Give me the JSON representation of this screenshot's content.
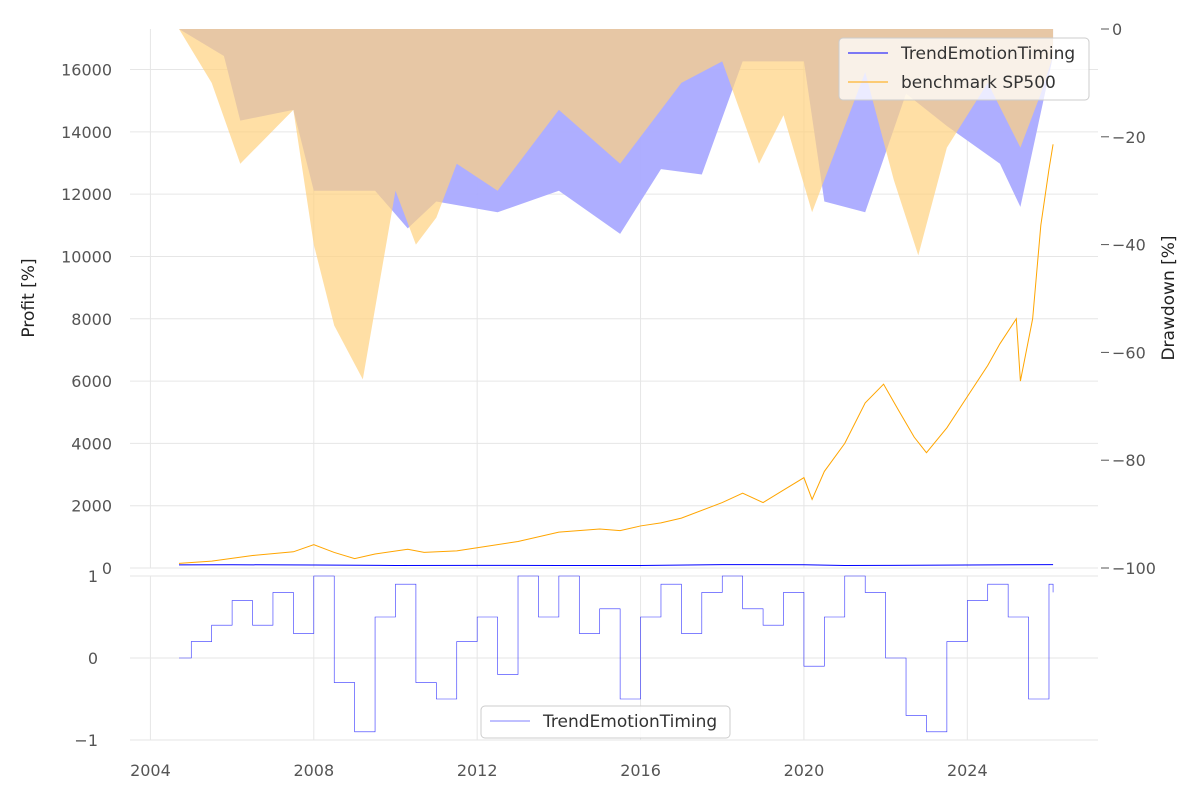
{
  "chart_data": [
    {
      "type": "line",
      "panel": "top",
      "title": "",
      "xlabel": "",
      "ylabel": "Profit [%]",
      "y2label": "Drawdown [%]",
      "xlim": [
        2003.5,
        2027.2
      ],
      "ylim": [
        0,
        17300
      ],
      "y2lim": [
        -100,
        0
      ],
      "x_ticks": [
        2004,
        2008,
        2012,
        2016,
        2020,
        2024
      ],
      "y_ticks": [
        0,
        2000,
        4000,
        6000,
        8000,
        10000,
        12000,
        14000,
        16000
      ],
      "y2_ticks": [
        0,
        -20,
        -40,
        -60,
        -80,
        -100
      ],
      "grid": true,
      "legend": {
        "position": "top-right",
        "entries": [
          "TrendEmotionTiming",
          "benchmark SP500"
        ]
      },
      "series": [
        {
          "name": "TrendEmotionTiming",
          "color": "#0000ff",
          "axis": "left",
          "x": [
            2004.7,
            2006,
            2008,
            2010,
            2012,
            2014,
            2016,
            2018,
            2020,
            2021,
            2022,
            2024,
            2026.1
          ],
          "y": [
            100,
            105,
            95,
            80,
            85,
            82,
            80,
            110,
            105,
            80,
            85,
            95,
            110
          ]
        },
        {
          "name": "benchmark SP500",
          "color": "#ffa500",
          "axis": "left",
          "x": [
            2004.7,
            2005.5,
            2006.5,
            2007.5,
            2008.0,
            2008.5,
            2009.0,
            2009.5,
            2010.3,
            2010.7,
            2011.5,
            2012.0,
            2013.0,
            2014.0,
            2015.0,
            2015.5,
            2016.0,
            2016.5,
            2017.0,
            2018.0,
            2018.5,
            2019.0,
            2019.5,
            2020.0,
            2020.2,
            2020.5,
            2021.0,
            2021.5,
            2021.95,
            2022.3,
            2022.7,
            2023.0,
            2023.5,
            2024.0,
            2024.5,
            2024.8,
            2025.2,
            2025.3,
            2025.6,
            2025.8,
            2026.0,
            2026.1
          ],
          "y": [
            150,
            220,
            400,
            520,
            750,
            500,
            300,
            450,
            600,
            500,
            550,
            650,
            850,
            1150,
            1250,
            1200,
            1350,
            1450,
            1600,
            2100,
            2400,
            2100,
            2500,
            2900,
            2200,
            3100,
            4000,
            5300,
            5900,
            5100,
            4200,
            3700,
            4500,
            5500,
            6500,
            7200,
            8000,
            6000,
            8000,
            11000,
            12800,
            13600
          ]
        }
      ],
      "drawdown_series": [
        {
          "name": "TrendEmotionTiming drawdown",
          "color": "#aaaaff",
          "x": [
            2004.7,
            2005.8,
            2006.2,
            2007.5,
            2008.0,
            2009.5,
            2010.3,
            2011.0,
            2012.5,
            2014.0,
            2015.5,
            2016.5,
            2017.5,
            2018.5,
            2020.0,
            2020.5,
            2021.5,
            2022.5,
            2023.5,
            2024.8,
            2025.3,
            2026.1
          ],
          "y": [
            0,
            -5,
            -17,
            -15,
            -30,
            -30,
            -37,
            -32,
            -34,
            -30,
            -38,
            -26,
            -27,
            -6,
            -6,
            -32,
            -34,
            -12,
            -18,
            -25,
            -33,
            -5
          ]
        },
        {
          "name": "benchmark SP500 drawdown",
          "color": "#ffd27f",
          "x": [
            2004.7,
            2005.5,
            2006.2,
            2007.5,
            2008.0,
            2008.5,
            2009.2,
            2010.0,
            2010.5,
            2011.0,
            2011.5,
            2012.5,
            2014.0,
            2015.5,
            2016.0,
            2017.0,
            2018.0,
            2018.9,
            2019.5,
            2020.2,
            2020.8,
            2021.5,
            2022.2,
            2022.8,
            2023.5,
            2024.5,
            2025.3,
            2025.8,
            2026.1
          ],
          "y": [
            0,
            -10,
            -25,
            -15,
            -40,
            -55,
            -65,
            -30,
            -40,
            -35,
            -25,
            -30,
            -15,
            -25,
            -20,
            -10,
            -6,
            -25,
            -16,
            -34,
            -22,
            -8,
            -28,
            -42,
            -22,
            -10,
            -22,
            -12,
            -5
          ]
        }
      ]
    },
    {
      "type": "line",
      "panel": "bottom",
      "title": "",
      "xlabel": "",
      "ylabel": "",
      "xlim": [
        2003.5,
        2027.2
      ],
      "ylim": [
        -1,
        1
      ],
      "x_ticks": [
        2004,
        2008,
        2012,
        2016,
        2020,
        2024
      ],
      "y_ticks": [
        -1,
        0,
        1
      ],
      "grid": true,
      "legend": {
        "position": "bottom-center",
        "entries": [
          "TrendEmotionTiming"
        ]
      },
      "series": [
        {
          "name": "TrendEmotionTiming",
          "color": "#0000ff",
          "x": [
            2004.7,
            2005.0,
            2005.5,
            2006.0,
            2006.5,
            2007.0,
            2007.5,
            2008.0,
            2008.5,
            2009.0,
            2009.5,
            2010.0,
            2010.5,
            2011.0,
            2011.5,
            2012.0,
            2012.5,
            2013.0,
            2013.5,
            2014.0,
            2014.5,
            2015.0,
            2015.5,
            2016.0,
            2016.5,
            2017.0,
            2017.5,
            2018.0,
            2018.5,
            2019.0,
            2019.5,
            2020.0,
            2020.5,
            2021.0,
            2021.5,
            2022.0,
            2022.5,
            2023.0,
            2023.5,
            2024.0,
            2024.5,
            2025.0,
            2025.5,
            2026.0,
            2026.1
          ],
          "y": [
            0,
            0.2,
            0.4,
            0.7,
            0.4,
            0.8,
            0.3,
            1.0,
            -0.3,
            -0.9,
            0.5,
            0.9,
            -0.3,
            -0.5,
            0.2,
            0.5,
            -0.2,
            1.0,
            0.5,
            1.0,
            0.3,
            0.6,
            -0.5,
            0.5,
            0.9,
            0.3,
            0.8,
            1.0,
            0.6,
            0.4,
            0.8,
            -0.1,
            0.5,
            1.0,
            0.8,
            0.0,
            -0.7,
            -0.9,
            0.2,
            0.7,
            0.9,
            0.5,
            -0.5,
            0.9,
            0.8
          ]
        }
      ]
    }
  ]
}
